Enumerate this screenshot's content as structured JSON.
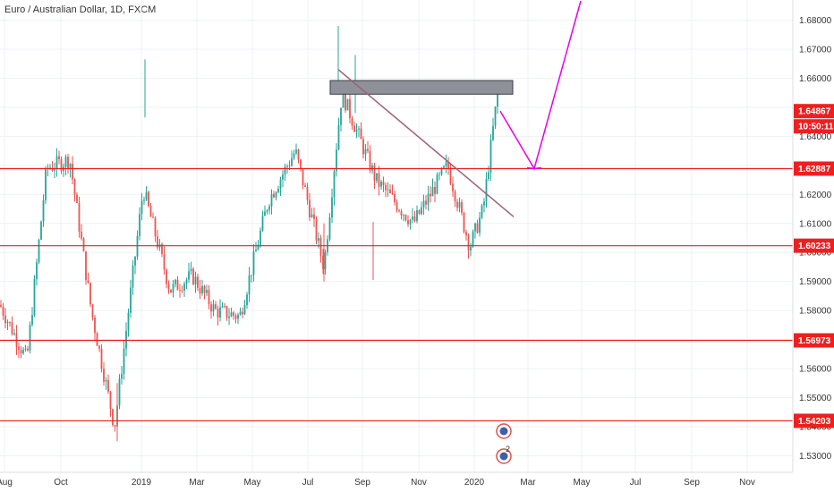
{
  "title": "Euro / Australian Dollar, 1D, FXCM",
  "colors": {
    "up": "#26a69a",
    "down": "#ef5350",
    "level_line": "#ef1f1f",
    "trendline": "#a0607a",
    "forecast": "#e600e6",
    "zone_fill": "#8e9199",
    "grid": "#eef1f5",
    "price_tag": "#ef1f1f",
    "time_tag": "#ef1f1f"
  },
  "chart_data": {
    "type": "candlestick",
    "y_axis": {
      "ticks": [
        "1.53000",
        "1.54000",
        "1.55000",
        "1.56000",
        "1.57000",
        "1.58000",
        "1.59000",
        "1.60000",
        "1.61000",
        "1.62000",
        "1.63000",
        "1.64000",
        "1.65000",
        "1.66000",
        "1.67000",
        "1.68000"
      ],
      "range": [
        1.5275,
        1.6875
      ]
    },
    "x_axis": {
      "labels": [
        "Aug",
        "Oct",
        "2019",
        "Mar",
        "May",
        "Jul",
        "Sep",
        "Nov",
        "2020",
        "Mar",
        "May",
        "Jul",
        "Sep",
        "Nov"
      ]
    },
    "levels": [
      {
        "price": 1.62887,
        "label": "1.62887"
      },
      {
        "price": 1.60233,
        "label": "1.60233"
      },
      {
        "price": 1.56973,
        "label": "1.56973"
      },
      {
        "price": 1.54203,
        "label": "1.54203"
      }
    ],
    "current_price": {
      "price": 1.64867,
      "label": "1.64867",
      "countdown": "10:50:11"
    },
    "zone": {
      "from_price": 1.6545,
      "to_price": 1.6592
    },
    "trendline": {
      "from_price": 1.663,
      "to_price": 1.6123
    },
    "forecast_path": [
      1.64867,
      1.62887,
      1.6875
    ],
    "key_points": [
      {
        "date": "2018-07",
        "price": 1.582
      },
      {
        "date": "2018-08",
        "price": 1.563
      },
      {
        "date": "2018-09",
        "price": 1.629
      },
      {
        "date": "2018-10",
        "price": 1.632
      },
      {
        "date": "2018-11",
        "price": 1.58
      },
      {
        "date": "2018-12",
        "price": 1.54
      },
      {
        "date": "2019-01",
        "price": 1.622
      },
      {
        "date": "2019-02",
        "price": 1.587
      },
      {
        "date": "2019-03",
        "price": 1.592
      },
      {
        "date": "2019-04",
        "price": 1.58
      },
      {
        "date": "2019-05",
        "price": 1.578
      },
      {
        "date": "2019-06",
        "price": 1.618
      },
      {
        "date": "2019-07",
        "price": 1.635
      },
      {
        "date": "2019-07",
        "price": 1.595
      },
      {
        "date": "2019-08",
        "price": 1.655
      },
      {
        "date": "2019-09",
        "price": 1.625
      },
      {
        "date": "2019-10",
        "price": 1.61
      },
      {
        "date": "2019-11",
        "price": 1.63
      },
      {
        "date": "2019-12",
        "price": 1.602
      },
      {
        "date": "2020-01",
        "price": 1.615
      },
      {
        "date": "2020-02",
        "price": 1.655
      }
    ],
    "event_badge": "2"
  }
}
